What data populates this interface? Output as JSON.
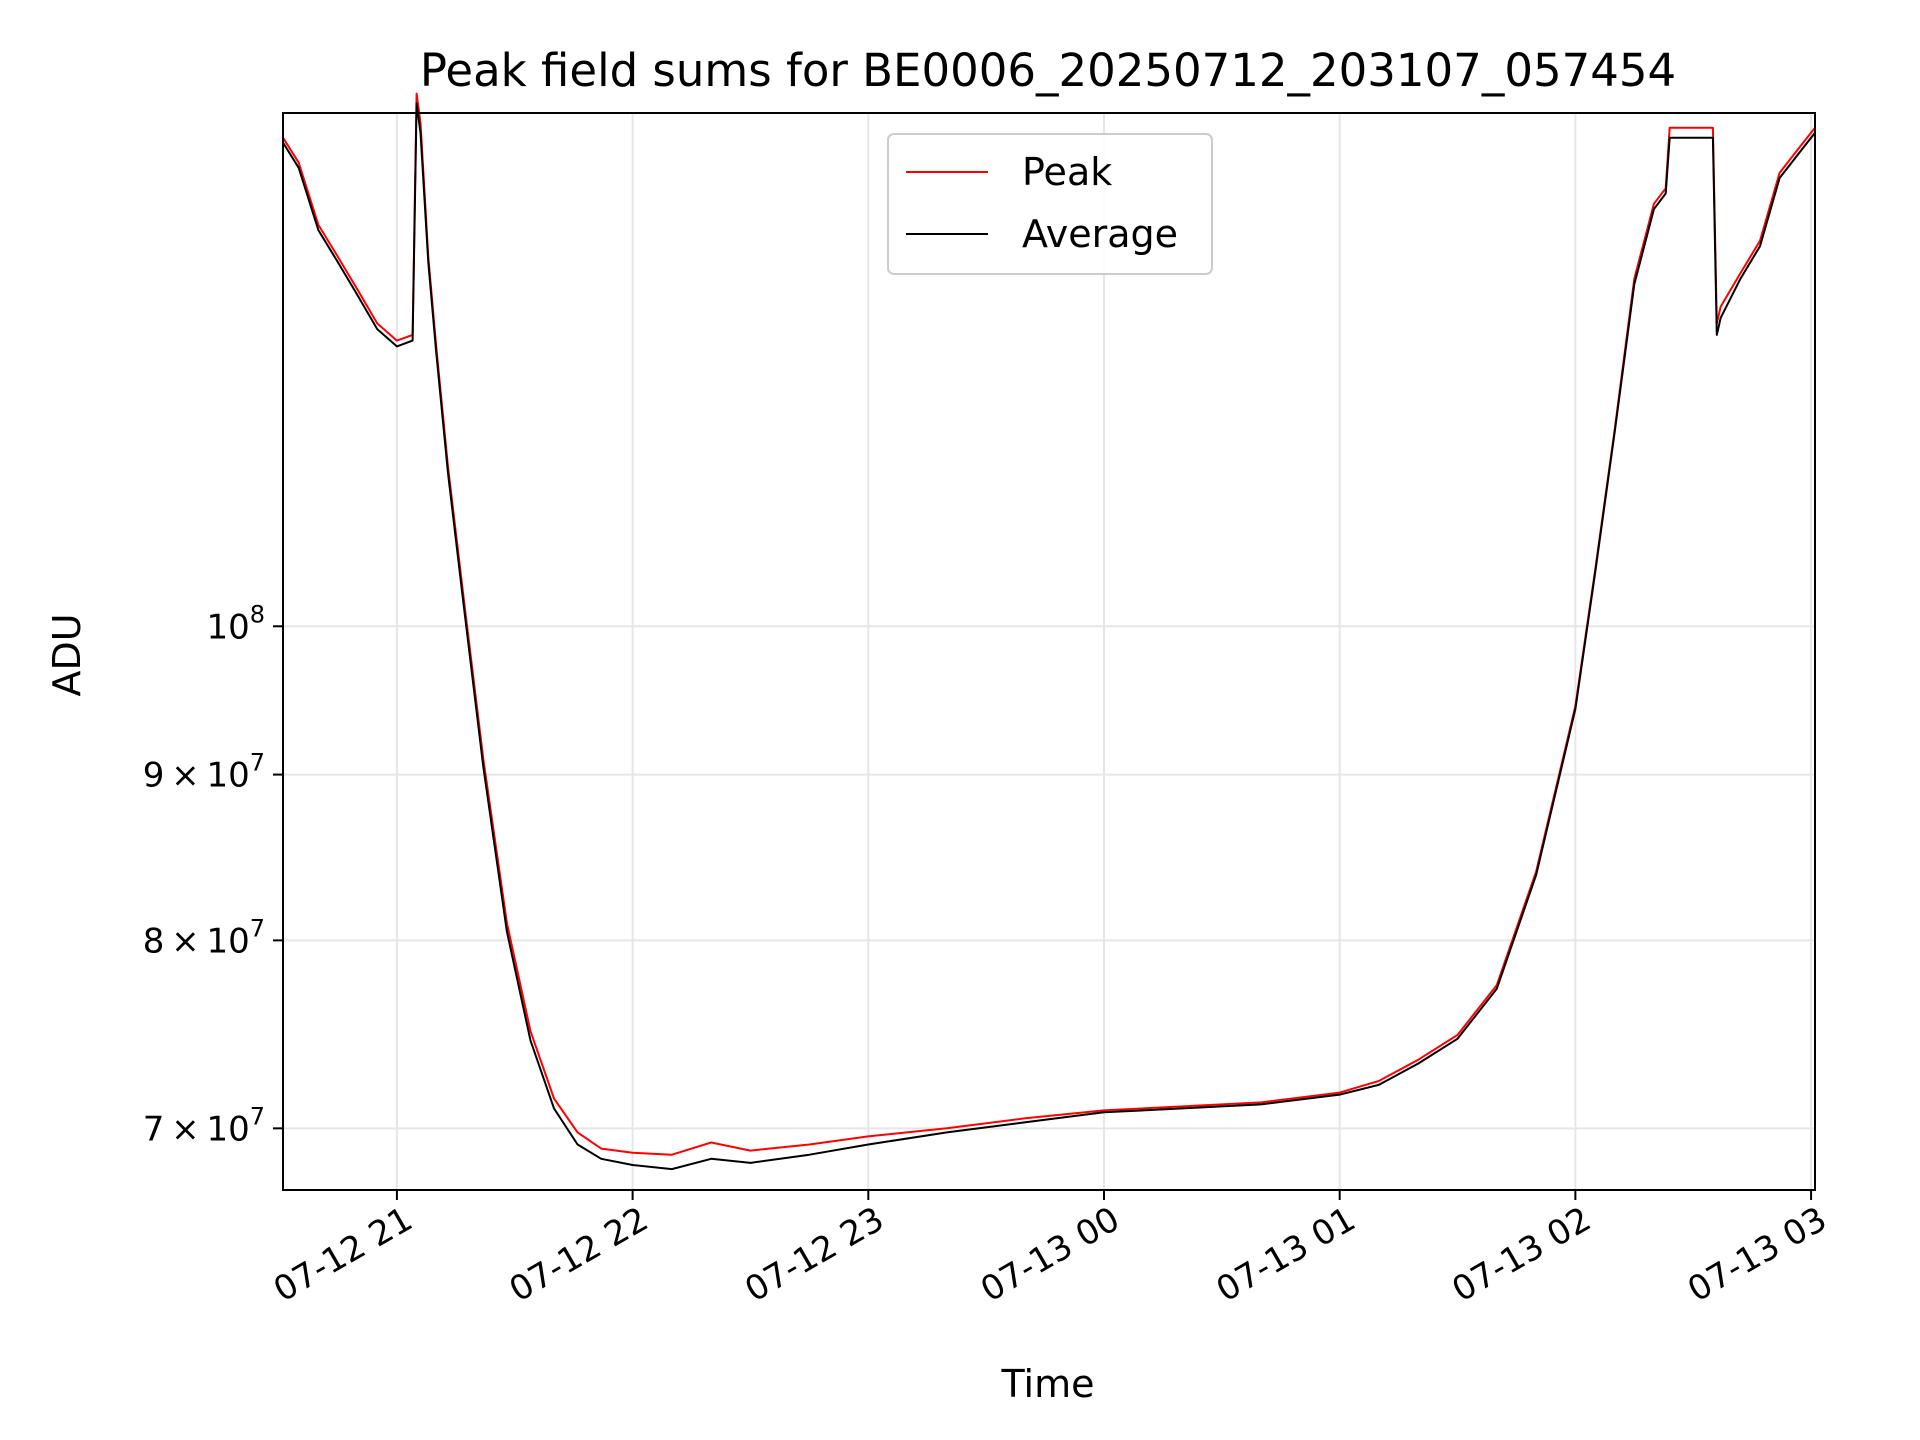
{
  "chart_data": {
    "type": "line",
    "title": "Peak field sums for BE0006_20250712_203107_057454",
    "xlabel": "Time",
    "ylabel": "ADU",
    "y_scale": "log",
    "grid": true,
    "legend_placement": "top-center",
    "xlim": [
      "2025-07-12 20:31",
      "2025-07-13 03:01"
    ],
    "ylim": [
      67000000,
      144000000
    ],
    "x_ticks": [
      {
        "value": "2025-07-12 21:00",
        "label": "07-12 21"
      },
      {
        "value": "2025-07-12 22:00",
        "label": "07-12 22"
      },
      {
        "value": "2025-07-12 23:00",
        "label": "07-12 23"
      },
      {
        "value": "2025-07-13 00:00",
        "label": "07-13 00"
      },
      {
        "value": "2025-07-13 01:00",
        "label": "07-13 01"
      },
      {
        "value": "2025-07-13 02:00",
        "label": "07-13 02"
      },
      {
        "value": "2025-07-13 03:00",
        "label": "07-13 03"
      }
    ],
    "y_ticks": [
      {
        "value": 70000000,
        "mantissa": "7",
        "exp": "7"
      },
      {
        "value": 80000000,
        "mantissa": "8",
        "exp": "7"
      },
      {
        "value": 90000000,
        "mantissa": "9",
        "exp": "7"
      },
      {
        "value": 100000000,
        "mantissa": "",
        "exp": "8"
      }
    ],
    "series": [
      {
        "name": "Peak",
        "color": "#ff0000",
        "x": [
          "2025-07-12 20:31",
          "2025-07-12 20:35",
          "2025-07-12 20:40",
          "2025-07-12 20:45",
          "2025-07-12 20:50",
          "2025-07-12 20:55",
          "2025-07-12 21:00",
          "2025-07-12 21:04",
          "2025-07-12 21:05",
          "2025-07-12 21:06",
          "2025-07-12 21:08",
          "2025-07-12 21:10",
          "2025-07-12 21:13",
          "2025-07-12 21:17",
          "2025-07-12 21:22",
          "2025-07-12 21:28",
          "2025-07-12 21:34",
          "2025-07-12 21:40",
          "2025-07-12 21:46",
          "2025-07-12 21:52",
          "2025-07-12 22:00",
          "2025-07-12 22:10",
          "2025-07-12 22:20",
          "2025-07-12 22:30",
          "2025-07-12 22:45",
          "2025-07-12 23:00",
          "2025-07-12 23:20",
          "2025-07-12 23:40",
          "2025-07-13 00:00",
          "2025-07-13 00:20",
          "2025-07-13 00:40",
          "2025-07-13 01:00",
          "2025-07-13 01:10",
          "2025-07-13 01:20",
          "2025-07-13 01:30",
          "2025-07-13 01:40",
          "2025-07-13 01:50",
          "2025-07-13 02:00",
          "2025-07-13 02:05",
          "2025-07-13 02:10",
          "2025-07-13 02:15",
          "2025-07-13 02:20",
          "2025-07-13 02:23",
          "2025-07-13 02:24",
          "2025-07-13 02:30",
          "2025-07-13 02:35",
          "2025-07-13 02:36",
          "2025-07-13 02:37",
          "2025-07-13 02:42",
          "2025-07-13 02:47",
          "2025-07-13 02:52",
          "2025-07-13 02:57",
          "2025-07-13 03:01"
        ],
        "y": [
          141500000,
          139000000,
          133000000,
          130000000,
          127000000,
          124000000,
          122500000,
          123000000,
          146000000,
          143000000,
          130000000,
          122000000,
          112000000,
          102000000,
          91000000,
          81000000,
          75000000,
          71500000,
          69800000,
          69000000,
          68800000,
          68700000,
          69300000,
          68900000,
          69200000,
          69600000,
          70000000,
          70500000,
          70900000,
          71100000,
          71300000,
          71800000,
          72400000,
          73500000,
          74800000,
          77500000,
          84000000,
          94500000,
          104000000,
          115000000,
          128000000,
          135000000,
          136500000,
          142500000,
          142500000,
          142500000,
          124000000,
          125500000,
          128500000,
          131500000,
          138000000,
          140500000,
          142500000
        ]
      },
      {
        "name": "Average",
        "color": "#000000",
        "x": [
          "2025-07-12 20:31",
          "2025-07-12 20:35",
          "2025-07-12 20:40",
          "2025-07-12 20:45",
          "2025-07-12 20:50",
          "2025-07-12 20:55",
          "2025-07-12 21:00",
          "2025-07-12 21:04",
          "2025-07-12 21:05",
          "2025-07-12 21:06",
          "2025-07-12 21:08",
          "2025-07-12 21:10",
          "2025-07-12 21:13",
          "2025-07-12 21:17",
          "2025-07-12 21:22",
          "2025-07-12 21:28",
          "2025-07-12 21:34",
          "2025-07-12 21:40",
          "2025-07-12 21:46",
          "2025-07-12 21:52",
          "2025-07-12 22:00",
          "2025-07-12 22:10",
          "2025-07-12 22:20",
          "2025-07-12 22:30",
          "2025-07-12 22:45",
          "2025-07-12 23:00",
          "2025-07-12 23:20",
          "2025-07-12 23:40",
          "2025-07-13 00:00",
          "2025-07-13 00:20",
          "2025-07-13 00:40",
          "2025-07-13 01:00",
          "2025-07-13 01:10",
          "2025-07-13 01:20",
          "2025-07-13 01:30",
          "2025-07-13 01:40",
          "2025-07-13 01:50",
          "2025-07-13 02:00",
          "2025-07-13 02:05",
          "2025-07-13 02:10",
          "2025-07-13 02:15",
          "2025-07-13 02:20",
          "2025-07-13 02:23",
          "2025-07-13 02:24",
          "2025-07-13 02:30",
          "2025-07-13 02:35",
          "2025-07-13 02:36",
          "2025-07-13 02:37",
          "2025-07-13 02:42",
          "2025-07-13 02:47",
          "2025-07-13 02:52",
          "2025-07-13 02:57",
          "2025-07-13 03:01"
        ],
        "y": [
          141000000,
          138500000,
          132500000,
          129500000,
          126500000,
          123500000,
          122000000,
          122500000,
          145000000,
          142000000,
          129500000,
          121500000,
          111500000,
          101500000,
          90500000,
          80500000,
          74500000,
          71000000,
          69200000,
          68500000,
          68200000,
          68000000,
          68500000,
          68300000,
          68700000,
          69200000,
          69800000,
          70300000,
          70800000,
          71000000,
          71200000,
          71700000,
          72200000,
          73300000,
          74600000,
          77300000,
          83800000,
          94300000,
          103800000,
          114800000,
          127500000,
          134500000,
          136000000,
          141500000,
          141500000,
          141500000,
          123000000,
          124500000,
          128000000,
          131000000,
          137500000,
          140000000,
          142000000
        ]
      }
    ]
  }
}
